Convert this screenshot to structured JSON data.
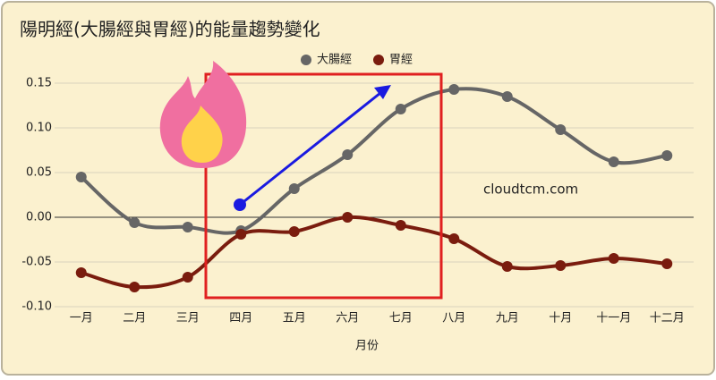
{
  "chart_data": {
    "type": "line",
    "title": "陽明經(大腸經與胃經)的能量趨勢變化",
    "x_label": "月份",
    "annotation": "cloudtcm.com",
    "categories": [
      "一月",
      "二月",
      "三月",
      "四月",
      "五月",
      "六月",
      "七月",
      "八月",
      "九月",
      "十月",
      "十一月",
      "十二月"
    ],
    "series": [
      {
        "name": "大腸經",
        "color": "#666666",
        "values": [
          0.045,
          -0.006,
          -0.011,
          -0.015,
          0.032,
          0.07,
          0.121,
          0.143,
          0.135,
          0.098,
          0.062,
          0.069
        ]
      },
      {
        "name": "胃經",
        "color": "#7a1c0e",
        "values": [
          -0.062,
          -0.078,
          -0.067,
          -0.019,
          -0.016,
          0.0,
          -0.009,
          -0.024,
          -0.055,
          -0.054,
          -0.046,
          -0.052
        ]
      }
    ],
    "ylim": [
      -0.1,
      0.175
    ],
    "yticks": [
      {
        "value": -0.1,
        "label": "-0.10"
      },
      -0.05,
      {
        "value": 0,
        "label": "0.00"
      },
      0.05,
      {
        "value": 0.1,
        "label": "0.10"
      },
      0.15
    ],
    "grid": true,
    "smooth": true,
    "legend": "top"
  }
}
